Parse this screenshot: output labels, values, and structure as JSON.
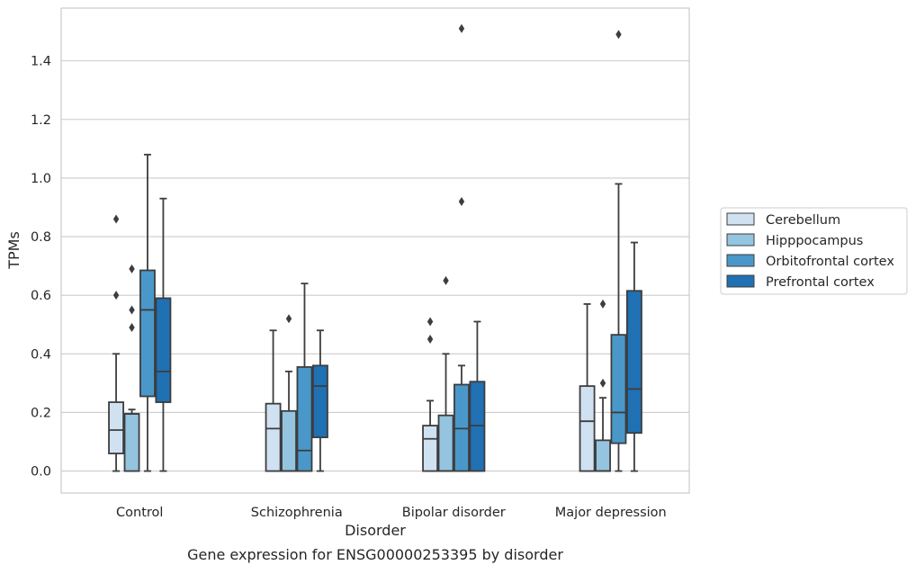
{
  "caption": "Gene expression for ENSG00000253395 by disorder",
  "chart_data": {
    "type": "box",
    "xlabel": "Disorder",
    "ylabel": "TPMs",
    "ylim": [
      -0.075,
      1.58
    ],
    "yticks": [
      0.0,
      0.2,
      0.4,
      0.6,
      0.8,
      1.0,
      1.2,
      1.4
    ],
    "ytick_labels": [
      "0.0",
      "0.2",
      "0.4",
      "0.6",
      "0.8",
      "1.0",
      "1.2",
      "1.4"
    ],
    "grid": "horizontal",
    "legend_position": "right",
    "categories": [
      "Control",
      "Schizophrenia",
      "Bipolar disorder",
      "Major depression"
    ],
    "series": [
      {
        "name": "Cerebellum",
        "color": "#d0e1f2",
        "boxes": [
          {
            "whislo": 0.0,
            "q1": 0.06,
            "med": 0.14,
            "q3": 0.235,
            "whishi": 0.4,
            "fliers": [
              0.6,
              0.86
            ]
          },
          {
            "whislo": 0.0,
            "q1": 0.0,
            "med": 0.145,
            "q3": 0.23,
            "whishi": 0.48,
            "fliers": []
          },
          {
            "whislo": 0.0,
            "q1": 0.0,
            "med": 0.11,
            "q3": 0.155,
            "whishi": 0.24,
            "fliers": [
              0.45,
              0.51
            ]
          },
          {
            "whislo": 0.0,
            "q1": 0.0,
            "med": 0.17,
            "q3": 0.29,
            "whishi": 0.57,
            "fliers": []
          }
        ]
      },
      {
        "name": "Hipppocampus",
        "color": "#94c4df",
        "boxes": [
          {
            "whislo": 0.0,
            "q1": 0.0,
            "med": 0.195,
            "q3": 0.195,
            "whishi": 0.21,
            "fliers": [
              0.49,
              0.55,
              0.69
            ]
          },
          {
            "whislo": 0.0,
            "q1": 0.0,
            "med": 0.0,
            "q3": 0.205,
            "whishi": 0.34,
            "fliers": [
              0.52
            ]
          },
          {
            "whislo": 0.0,
            "q1": 0.0,
            "med": 0.0,
            "q3": 0.19,
            "whishi": 0.4,
            "fliers": [
              0.65
            ]
          },
          {
            "whislo": 0.0,
            "q1": 0.0,
            "med": 0.0,
            "q3": 0.105,
            "whishi": 0.25,
            "fliers": [
              0.3,
              0.57
            ]
          }
        ]
      },
      {
        "name": "Orbitofrontal cortex",
        "color": "#4a98c9",
        "boxes": [
          {
            "whislo": 0.0,
            "q1": 0.255,
            "med": 0.55,
            "q3": 0.685,
            "whishi": 1.08,
            "fliers": []
          },
          {
            "whislo": 0.0,
            "q1": 0.0,
            "med": 0.07,
            "q3": 0.355,
            "whishi": 0.64,
            "fliers": []
          },
          {
            "whislo": 0.0,
            "q1": 0.0,
            "med": 0.145,
            "q3": 0.295,
            "whishi": 0.36,
            "fliers": [
              0.92,
              1.51
            ]
          },
          {
            "whislo": 0.0,
            "q1": 0.095,
            "med": 0.2,
            "q3": 0.465,
            "whishi": 0.98,
            "fliers": [
              1.49
            ]
          }
        ]
      },
      {
        "name": "Prefrontal cortex",
        "color": "#2070b4",
        "boxes": [
          {
            "whislo": 0.0,
            "q1": 0.235,
            "med": 0.34,
            "q3": 0.59,
            "whishi": 0.93,
            "fliers": []
          },
          {
            "whislo": 0.0,
            "q1": 0.115,
            "med": 0.29,
            "q3": 0.36,
            "whishi": 0.48,
            "fliers": []
          },
          {
            "whislo": 0.0,
            "q1": 0.0,
            "med": 0.155,
            "q3": 0.305,
            "whishi": 0.51,
            "fliers": []
          },
          {
            "whislo": 0.0,
            "q1": 0.13,
            "med": 0.28,
            "q3": 0.615,
            "whishi": 0.78,
            "fliers": []
          }
        ]
      }
    ]
  }
}
